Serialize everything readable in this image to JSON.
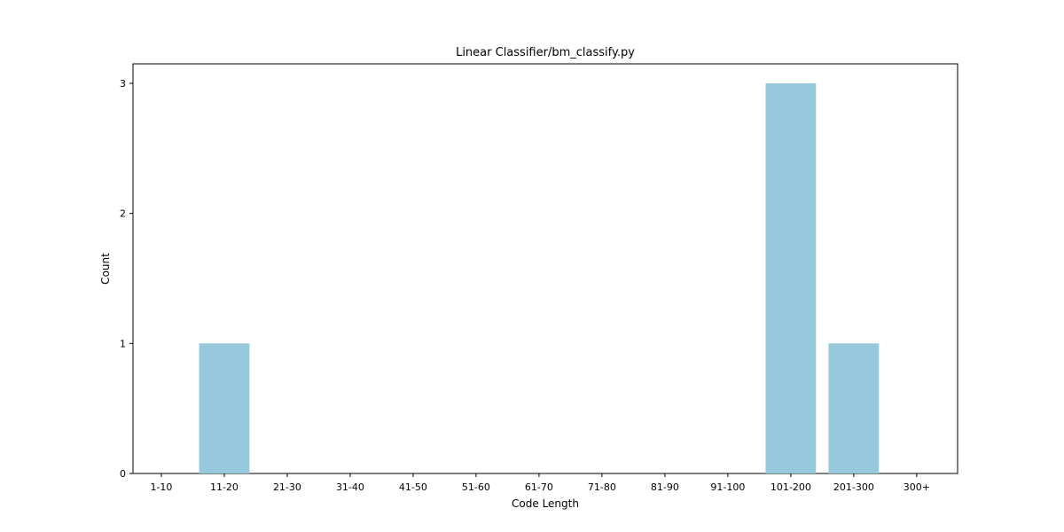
{
  "chart_data": {
    "type": "bar",
    "title": "Linear Classifier/bm_classify.py",
    "xlabel": "Code Length",
    "ylabel": "Count",
    "categories": [
      "1-10",
      "11-20",
      "21-30",
      "31-40",
      "41-50",
      "51-60",
      "61-70",
      "71-80",
      "81-90",
      "91-100",
      "101-200",
      "201-300",
      "300+"
    ],
    "values": [
      0,
      1,
      0,
      0,
      0,
      0,
      0,
      0,
      0,
      0,
      3,
      1,
      0
    ],
    "ylim": [
      0,
      3.15
    ],
    "yticks": [
      0,
      1,
      2,
      3
    ],
    "bar_color": "#96c9dc",
    "grid": false,
    "legend": "none"
  }
}
